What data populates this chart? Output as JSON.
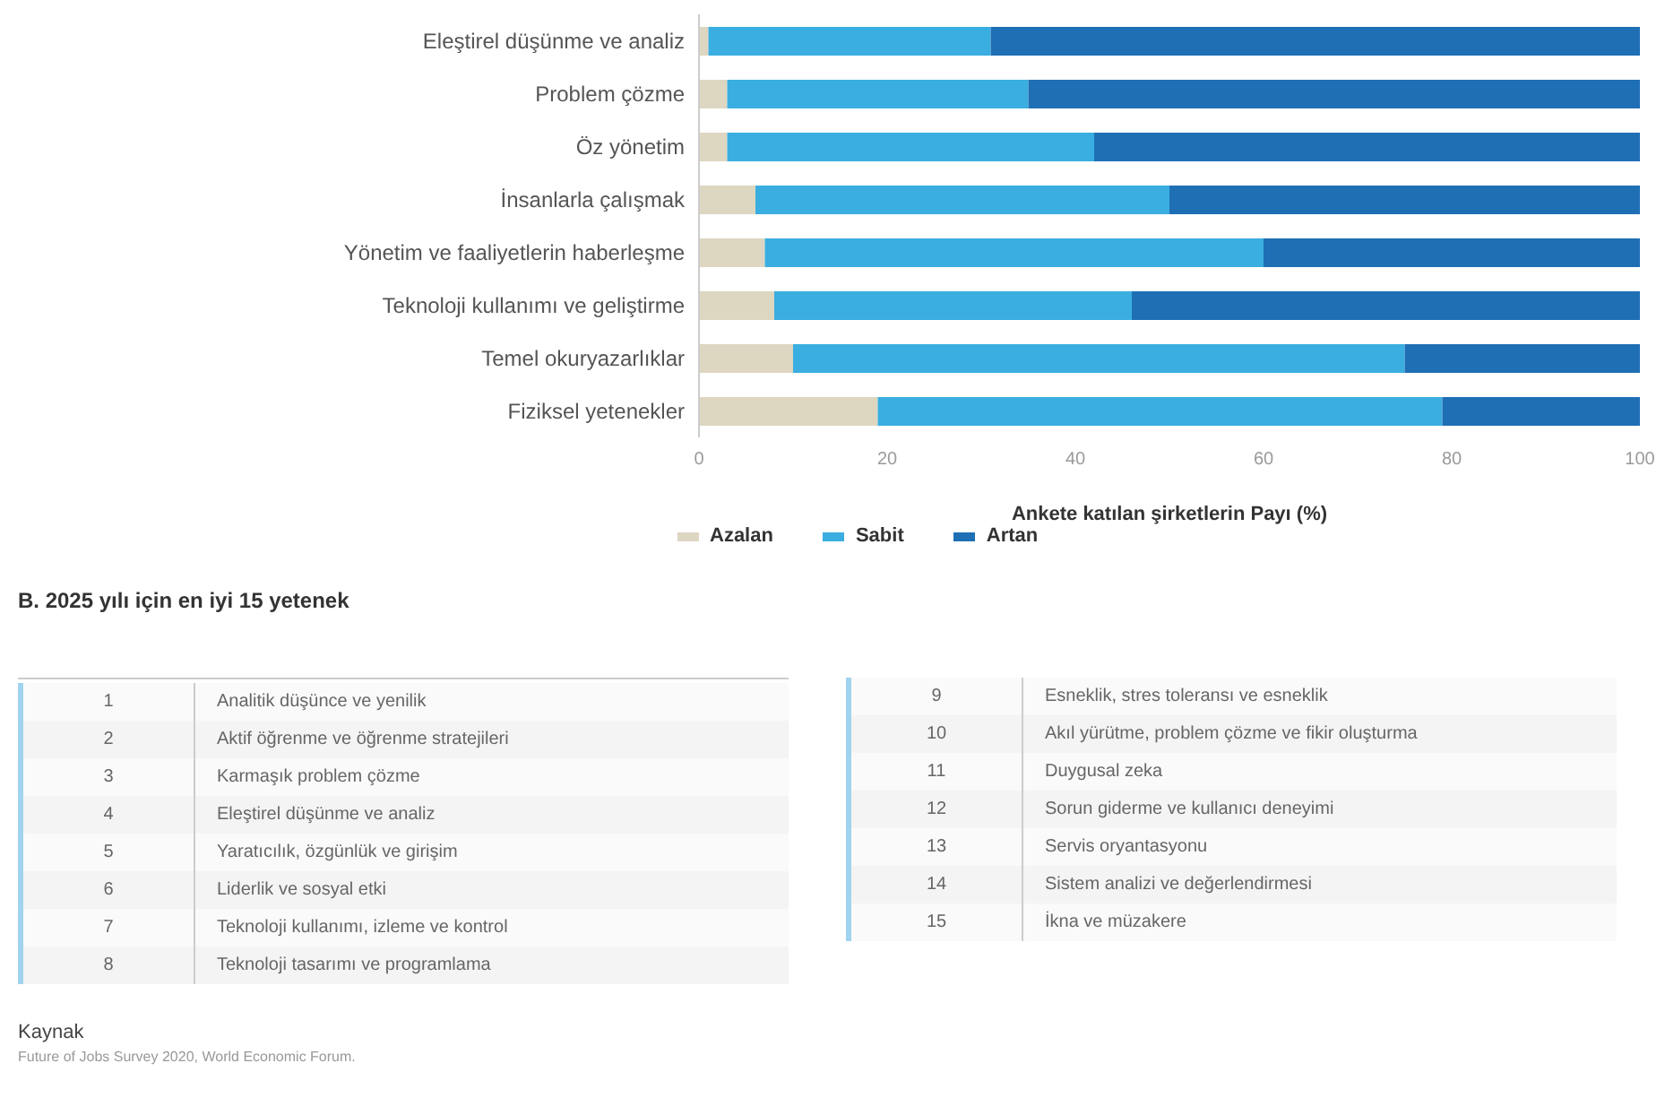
{
  "chart_data": [
    {
      "type": "bar",
      "orientation": "horizontal",
      "stacked": true,
      "categories": [
        "Eleştirel düşünme ve analiz",
        "Problem çözme",
        "Öz yönetim",
        "İnsanlarla çalışmak",
        "Yönetim ve faaliyetlerin haberleşme",
        "Teknoloji kullanımı ve geliştirme",
        "Temel okuryazarlıklar",
        "Fiziksel yetenekler"
      ],
      "series": [
        {
          "name": "Azalan",
          "color": "#ddd6c1",
          "values": [
            1,
            3,
            3,
            6,
            7,
            8,
            10,
            19
          ]
        },
        {
          "name": "Sabit",
          "color": "#3aaee0",
          "values": [
            30,
            32,
            39,
            44,
            53,
            38,
            65,
            60
          ]
        },
        {
          "name": "Artan",
          "color": "#1f6fb5",
          "values": [
            69,
            65,
            58,
            50,
            40,
            54,
            25,
            21
          ]
        }
      ],
      "xlim": [
        0,
        100
      ],
      "xticks": [
        0,
        20,
        40,
        60,
        80,
        100
      ],
      "xlabel": "Ankete katılan şirketlerin Payı (%)",
      "legend": "bottom",
      "grid": false
    },
    {
      "type": "other",
      "title": "B. 2025 yılı için en iyi 15 yetenek",
      "categories": [
        "Analitik düşünce ve yenilik",
        "Aktif öğrenme ve öğrenme stratejileri",
        "Karmaşık problem çözme",
        "Eleştirel düşünme ve analiz",
        "Yaratıcılık, özgünlük ve girişim",
        "Liderlik ve sosyal etki",
        "Teknoloji kullanımı, izleme ve kontrol",
        "Teknoloji tasarımı ve programlama",
        "Esneklik, stres toleransı ve esneklik",
        "Akıl yürütme, problem çözme ve fikir oluşturma",
        "Duygusal zeka",
        "Sorun giderme ve kullanıcı deneyimi",
        "Servis oryantasyonu",
        "Sistem analizi ve değerlendirmesi",
        "İkna ve müzakere"
      ],
      "values": [
        1,
        2,
        3,
        4,
        5,
        6,
        7,
        8,
        9,
        10,
        11,
        12,
        13,
        14,
        15
      ],
      "data_labels": true,
      "annotations": [
        "Kaynak",
        "Future of Jobs Survey 2020, World Economic Forum."
      ]
    }
  ]
}
